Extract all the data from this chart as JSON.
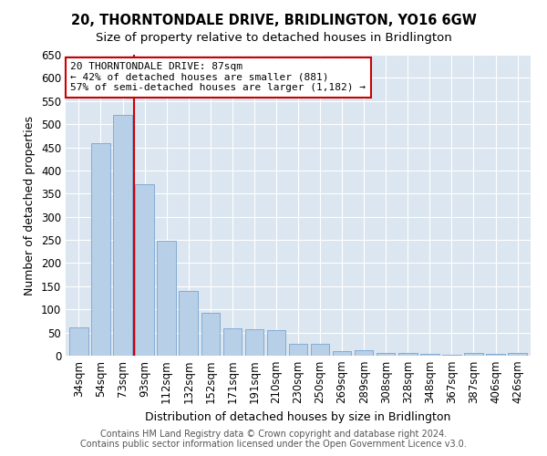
{
  "title": "20, THORNTONDALE DRIVE, BRIDLINGTON, YO16 6GW",
  "subtitle": "Size of property relative to detached houses in Bridlington",
  "xlabel": "Distribution of detached houses by size in Bridlington",
  "ylabel": "Number of detached properties",
  "categories": [
    "34sqm",
    "54sqm",
    "73sqm",
    "93sqm",
    "112sqm",
    "132sqm",
    "152sqm",
    "171sqm",
    "191sqm",
    "210sqm",
    "230sqm",
    "250sqm",
    "269sqm",
    "289sqm",
    "308sqm",
    "328sqm",
    "348sqm",
    "367sqm",
    "387sqm",
    "406sqm",
    "426sqm"
  ],
  "values": [
    62,
    458,
    520,
    370,
    248,
    140,
    93,
    60,
    57,
    55,
    26,
    26,
    9,
    12,
    5,
    5,
    4,
    2,
    6,
    3,
    5
  ],
  "bar_color": "#b8cfe8",
  "bar_edge_color": "#6699cc",
  "vline_x": 2.5,
  "vline_color": "#cc0000",
  "annotation_text": "20 THORNTONDALE DRIVE: 87sqm\n← 42% of detached houses are smaller (881)\n57% of semi-detached houses are larger (1,182) →",
  "annotation_box_color": "#ffffff",
  "annotation_box_edge": "#cc0000",
  "ylim": [
    0,
    650
  ],
  "yticks": [
    0,
    50,
    100,
    150,
    200,
    250,
    300,
    350,
    400,
    450,
    500,
    550,
    600,
    650
  ],
  "footer": "Contains HM Land Registry data © Crown copyright and database right 2024.\nContains public sector information licensed under the Open Government Licence v3.0.",
  "title_fontsize": 10.5,
  "subtitle_fontsize": 9.5,
  "xlabel_fontsize": 9,
  "ylabel_fontsize": 9,
  "tick_fontsize": 8.5,
  "annotation_fontsize": 8,
  "footer_fontsize": 7
}
